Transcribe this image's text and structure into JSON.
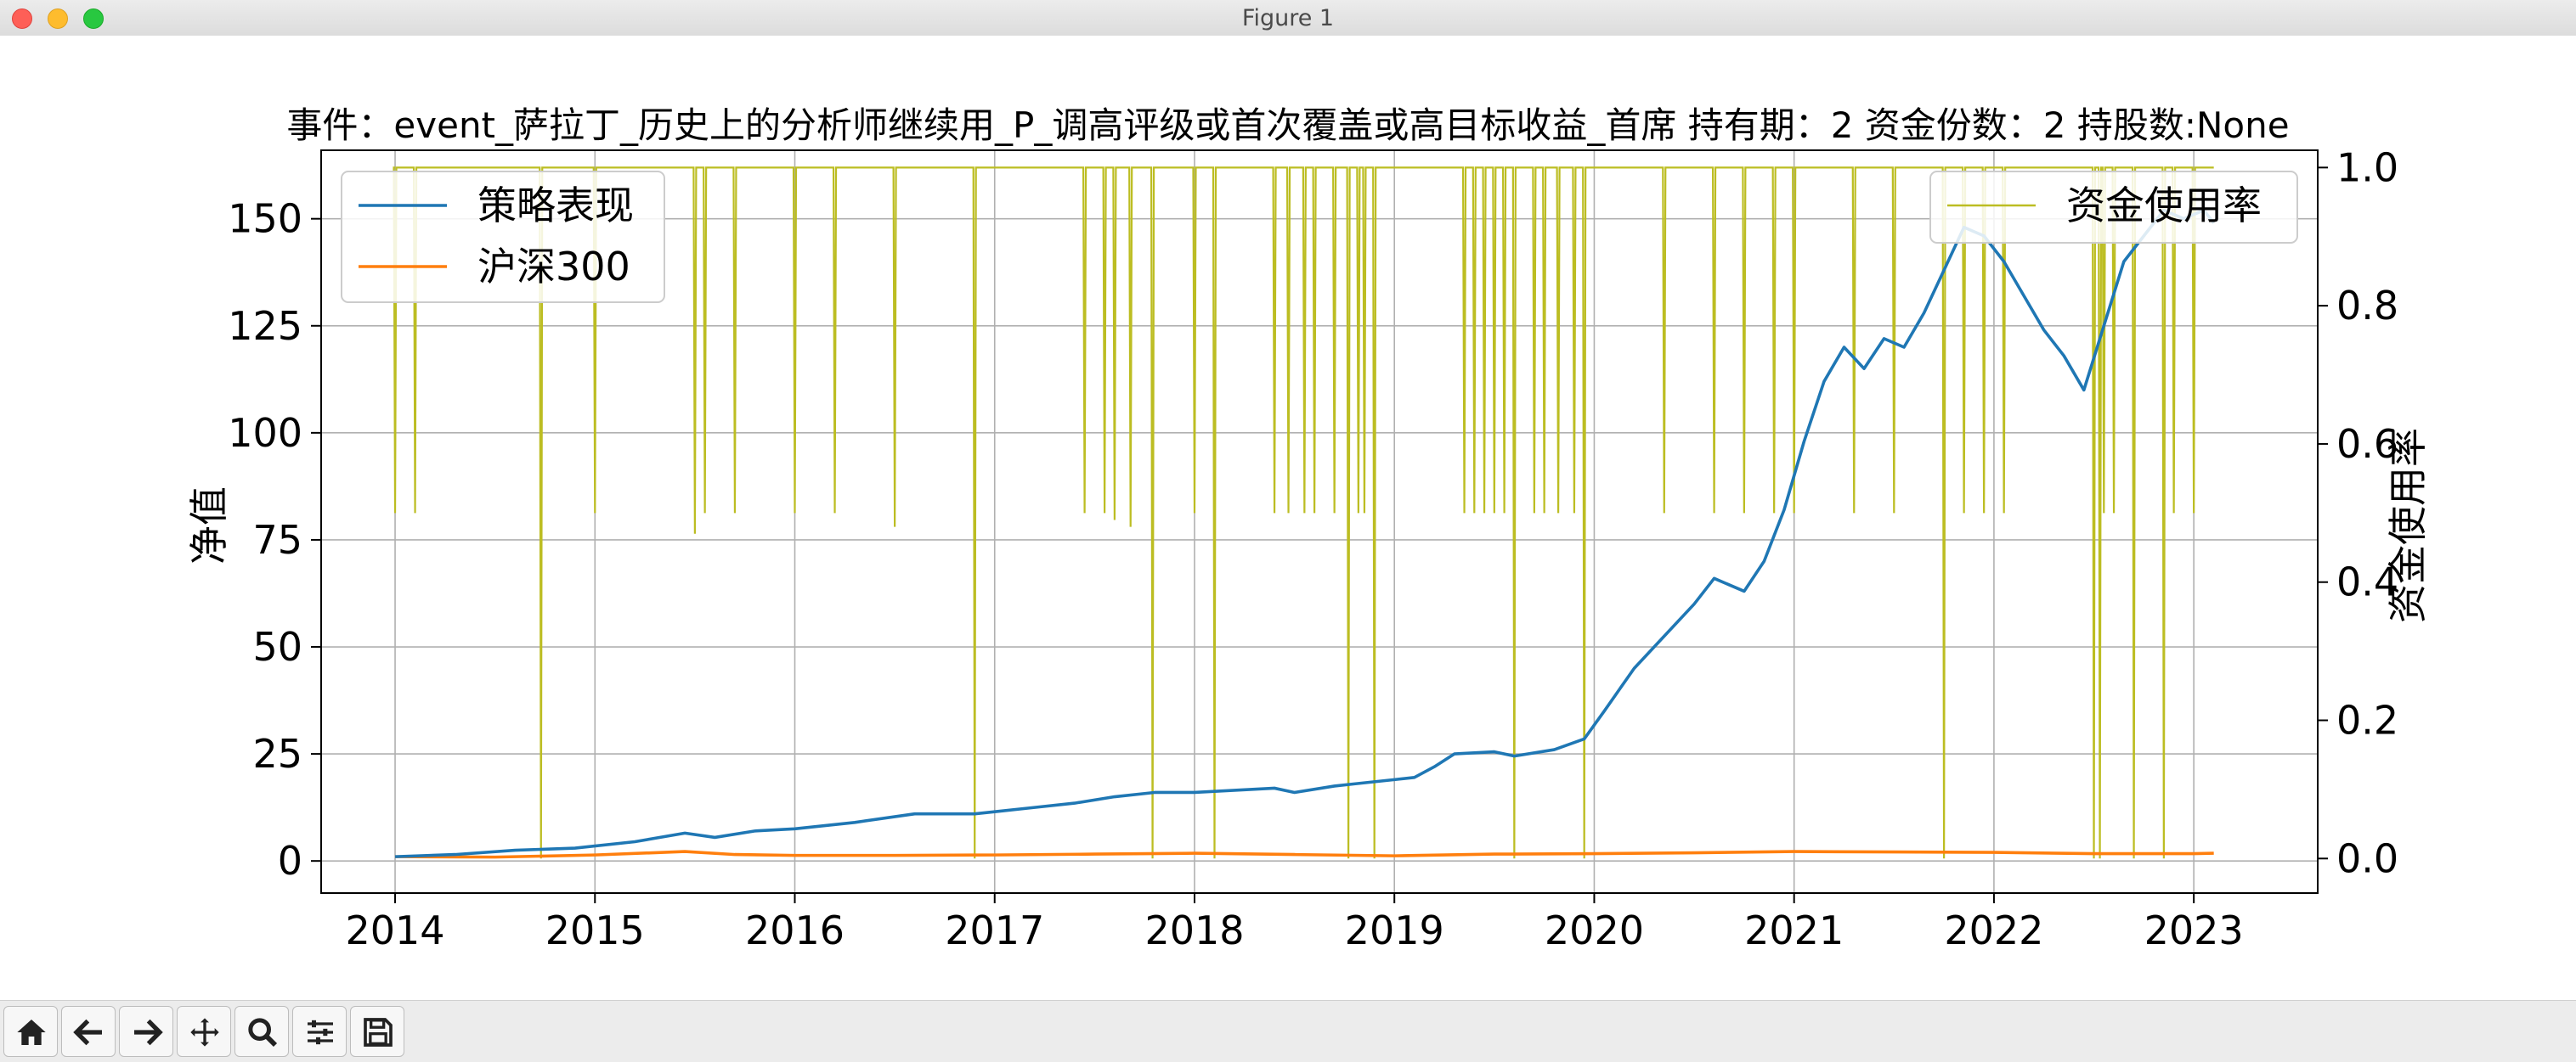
{
  "window": {
    "title": "Figure 1"
  },
  "chart_data": {
    "type": "line",
    "title": "事件：event_萨拉丁_历史上的分析师继续用_P_调高评级或首次覆盖或高目标收益_首席 持有期：2 资金份数：2 持股数:None",
    "ylabel": "净值",
    "y2label": "资金使用率",
    "xlim": [
      2013.63,
      2023.62
    ],
    "ylim": [
      -7.5,
      166
    ],
    "y2lim": [
      -0.05,
      1.025
    ],
    "xticks": [
      "2014",
      "2015",
      "2016",
      "2017",
      "2018",
      "2019",
      "2020",
      "2021",
      "2022",
      "2023"
    ],
    "yticks": [
      "0",
      "25",
      "50",
      "75",
      "100",
      "125",
      "150"
    ],
    "y2ticks": [
      "0.0",
      "0.2",
      "0.4",
      "0.6",
      "0.8",
      "1.0"
    ],
    "grid": true,
    "legend_left": {
      "placement": "upper-left",
      "entries": [
        "策略表现",
        "沪深300"
      ]
    },
    "legend_right": {
      "placement": "upper-right",
      "entries": [
        "资金使用率"
      ]
    },
    "colors": {
      "strategy": "#1f77b4",
      "hs300": "#ff7f0e",
      "usage": "#bcbd22"
    },
    "series": [
      {
        "name": "策略表现",
        "axis": "left",
        "x": [
          2014.0,
          2014.3,
          2014.6,
          2014.9,
          2015.2,
          2015.45,
          2015.6,
          2015.8,
          2016.0,
          2016.3,
          2016.6,
          2016.9,
          2017.0,
          2017.2,
          2017.4,
          2017.6,
          2017.8,
          2018.0,
          2018.2,
          2018.4,
          2018.5,
          2018.7,
          2018.8,
          2018.9,
          2019.0,
          2019.1,
          2019.2,
          2019.3,
          2019.5,
          2019.6,
          2019.8,
          2019.95,
          2020.05,
          2020.2,
          2020.3,
          2020.5,
          2020.6,
          2020.75,
          2020.85,
          2020.95,
          2021.05,
          2021.15,
          2021.25,
          2021.35,
          2021.45,
          2021.55,
          2021.65,
          2021.75,
          2021.85,
          2021.95,
          2022.05,
          2022.15,
          2022.25,
          2022.35,
          2022.45,
          2022.55,
          2022.65,
          2022.75,
          2022.85,
          2022.95,
          2023.05,
          2023.1
        ],
        "values": [
          1,
          1.5,
          2.5,
          3,
          4.5,
          6.5,
          5.5,
          7,
          7.5,
          9,
          11,
          11,
          11.5,
          12.5,
          13.5,
          15,
          16,
          16,
          16.5,
          17,
          16,
          17.5,
          18,
          18.5,
          19,
          19.5,
          22,
          25,
          25.5,
          24.5,
          26,
          28.5,
          35,
          45,
          50,
          60,
          66,
          63,
          70,
          82,
          98,
          112,
          120,
          115,
          122,
          120,
          128,
          138,
          148,
          146,
          140,
          132,
          124,
          118,
          110,
          125,
          140,
          146,
          152,
          150,
          152,
          149
        ]
      },
      {
        "name": "沪深300",
        "axis": "left",
        "x": [
          2014.0,
          2014.5,
          2015.0,
          2015.45,
          2015.7,
          2016.0,
          2016.5,
          2017.0,
          2017.5,
          2018.0,
          2018.5,
          2019.0,
          2019.5,
          2020.0,
          2020.5,
          2021.0,
          2021.5,
          2022.0,
          2022.5,
          2023.0,
          2023.1
        ],
        "values": [
          1,
          0.9,
          1.4,
          2.2,
          1.5,
          1.3,
          1.3,
          1.4,
          1.6,
          1.8,
          1.5,
          1.2,
          1.6,
          1.7,
          1.9,
          2.2,
          2.1,
          2.0,
          1.7,
          1.7,
          1.8
        ]
      },
      {
        "name": "资金使用率",
        "axis": "right",
        "baseline": 1.0,
        "dips": [
          [
            2014.0,
            0.5
          ],
          [
            2014.1,
            0.5
          ],
          [
            2014.73,
            0.0
          ],
          [
            2015.0,
            0.5
          ],
          [
            2015.5,
            0.47
          ],
          [
            2015.55,
            0.5
          ],
          [
            2015.7,
            0.5
          ],
          [
            2016.0,
            0.5
          ],
          [
            2016.2,
            0.5
          ],
          [
            2016.5,
            0.48
          ],
          [
            2016.9,
            0.0
          ],
          [
            2017.45,
            0.5
          ],
          [
            2017.55,
            0.5
          ],
          [
            2017.6,
            0.49
          ],
          [
            2017.68,
            0.48
          ],
          [
            2017.79,
            0.0
          ],
          [
            2018.0,
            0.5
          ],
          [
            2018.1,
            0.0
          ],
          [
            2018.4,
            0.5
          ],
          [
            2018.47,
            0.5
          ],
          [
            2018.55,
            0.5
          ],
          [
            2018.6,
            0.5
          ],
          [
            2018.7,
            0.5
          ],
          [
            2018.77,
            0.0
          ],
          [
            2018.82,
            0.5
          ],
          [
            2018.85,
            0.5
          ],
          [
            2018.9,
            0.0
          ],
          [
            2019.35,
            0.5
          ],
          [
            2019.4,
            0.5
          ],
          [
            2019.45,
            0.5
          ],
          [
            2019.5,
            0.5
          ],
          [
            2019.55,
            0.5
          ],
          [
            2019.6,
            0.0
          ],
          [
            2019.7,
            0.5
          ],
          [
            2019.75,
            0.5
          ],
          [
            2019.82,
            0.5
          ],
          [
            2019.9,
            0.5
          ],
          [
            2019.95,
            0.0
          ],
          [
            2020.35,
            0.5
          ],
          [
            2020.6,
            0.5
          ],
          [
            2020.75,
            0.5
          ],
          [
            2020.9,
            0.5
          ],
          [
            2021.0,
            0.5
          ],
          [
            2021.3,
            0.5
          ],
          [
            2021.5,
            0.5
          ],
          [
            2021.75,
            0.0
          ],
          [
            2021.85,
            0.5
          ],
          [
            2021.95,
            0.5
          ],
          [
            2022.05,
            0.5
          ],
          [
            2022.5,
            0.0
          ],
          [
            2022.53,
            0.0
          ],
          [
            2022.55,
            0.5
          ],
          [
            2022.6,
            0.5
          ],
          [
            2022.7,
            0.0
          ],
          [
            2022.85,
            0.0
          ],
          [
            2022.9,
            0.5
          ],
          [
            2023.0,
            0.5
          ]
        ]
      }
    ]
  }
}
